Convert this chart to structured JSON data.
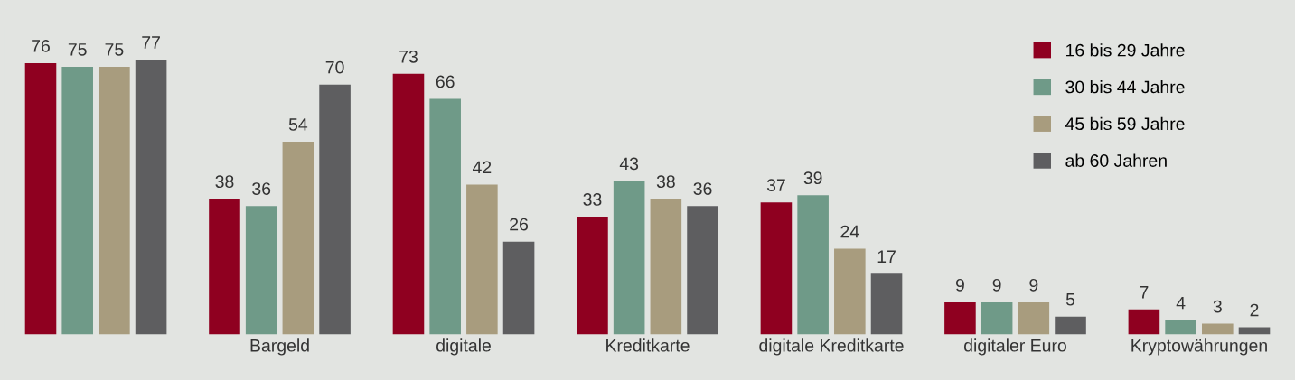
{
  "chart_data": {
    "type": "bar",
    "categories": [
      null,
      "Bargeld",
      "digitale",
      "Kreditkarte",
      "digitale Kreditkarte",
      "digitaler Euro",
      "Kryptowährungen"
    ],
    "series": [
      {
        "name": "16 bis 29 Jahre",
        "color": "#8f0020",
        "values": [
          76,
          38,
          73,
          33,
          37,
          9,
          7
        ]
      },
      {
        "name": "30 bis 44 Jahre",
        "color": "#6f9a88",
        "values": [
          75,
          36,
          66,
          43,
          39,
          9,
          4
        ]
      },
      {
        "name": "45 bis 59 Jahre",
        "color": "#a89c7e",
        "values": [
          75,
          54,
          42,
          38,
          24,
          9,
          3
        ]
      },
      {
        "name": "ab 60 Jahren",
        "color": "#5e5e60",
        "values": [
          77,
          70,
          26,
          36,
          17,
          5,
          2
        ]
      }
    ],
    "data_labels": true,
    "legend": "top right",
    "grid": false
  }
}
